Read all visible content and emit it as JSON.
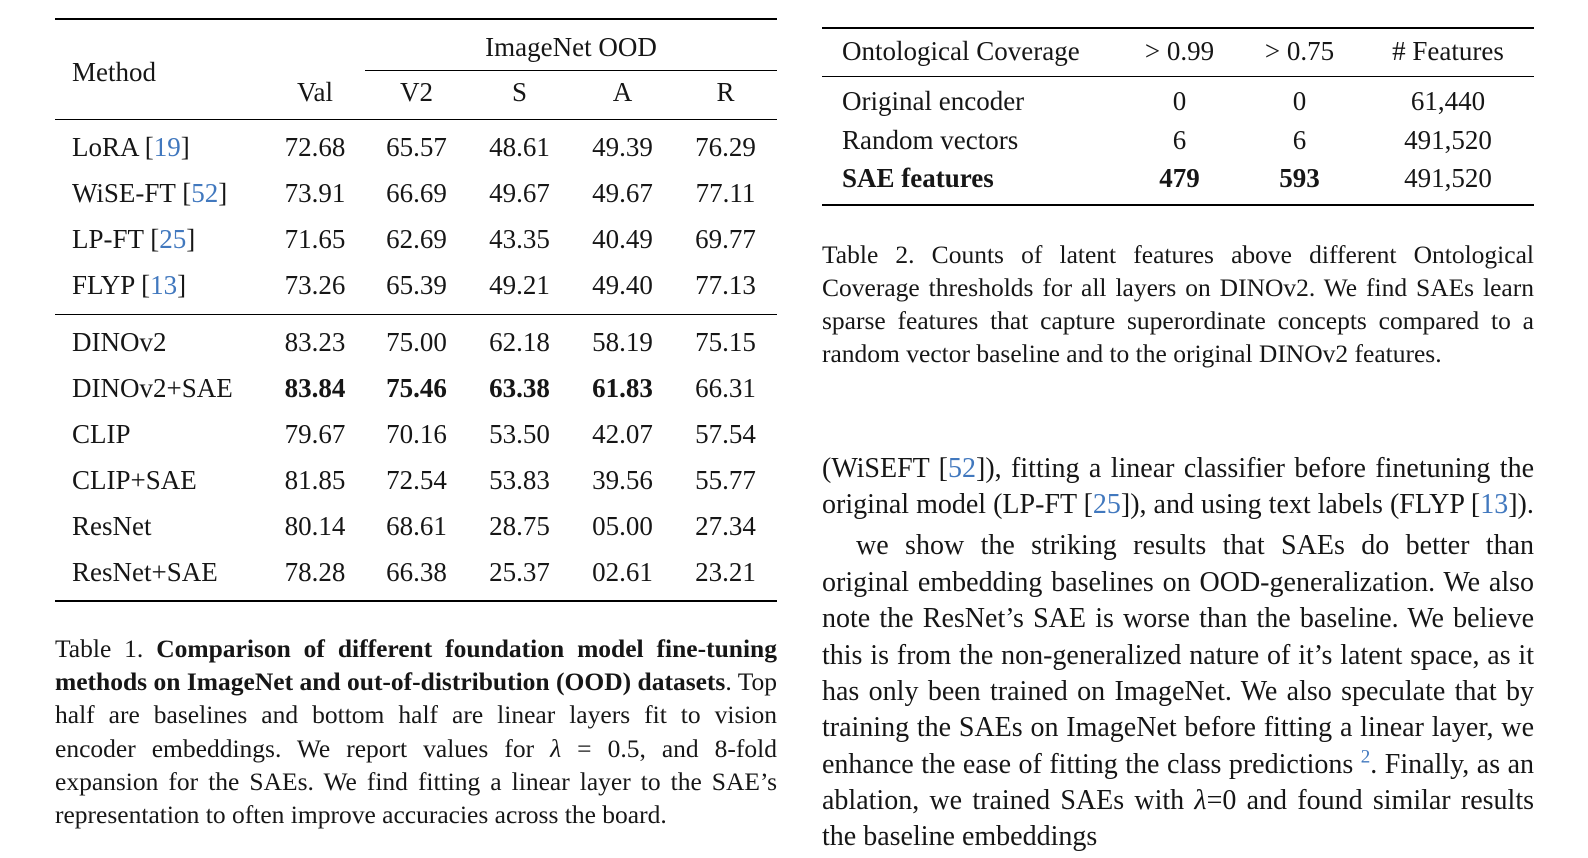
{
  "colors": {
    "cite_blue": "#4178be",
    "text": "#161616",
    "rule": "#000000"
  },
  "table1": {
    "header": {
      "method": "Method",
      "val": "Val",
      "ood_group": "ImageNet OOD",
      "ood_cols": [
        "V2",
        "S",
        "A",
        "R"
      ]
    },
    "baseline_rows": [
      {
        "method": "LoRA",
        "cite": "19",
        "values": [
          "72.68",
          "65.57",
          "48.61",
          "49.39",
          "76.29"
        ],
        "bold_idx": []
      },
      {
        "method": "WiSE-FT",
        "cite": "52",
        "values": [
          "73.91",
          "66.69",
          "49.67",
          "49.67",
          "77.11"
        ],
        "bold_idx": []
      },
      {
        "method": "LP-FT",
        "cite": "25",
        "values": [
          "71.65",
          "62.69",
          "43.35",
          "40.49",
          "69.77"
        ],
        "bold_idx": []
      },
      {
        "method": "FLYP",
        "cite": "13",
        "values": [
          "73.26",
          "65.39",
          "49.21",
          "49.40",
          "77.13"
        ],
        "bold_idx": []
      }
    ],
    "encoder_rows": [
      {
        "method": "DINOv2",
        "cite": "",
        "values": [
          "83.23",
          "75.00",
          "62.18",
          "58.19",
          "75.15"
        ],
        "bold_idx": []
      },
      {
        "method": "DINOv2+SAE",
        "cite": "",
        "values": [
          "83.84",
          "75.46",
          "63.38",
          "61.83",
          "66.31"
        ],
        "bold_idx": [
          0,
          1,
          2,
          3
        ]
      },
      {
        "method": "CLIP",
        "cite": "",
        "values": [
          "79.67",
          "70.16",
          "53.50",
          "42.07",
          "57.54"
        ],
        "bold_idx": []
      },
      {
        "method": "CLIP+SAE",
        "cite": "",
        "values": [
          "81.85",
          "72.54",
          "53.83",
          "39.56",
          "55.77"
        ],
        "bold_idx": []
      },
      {
        "method": "ResNet",
        "cite": "",
        "values": [
          "80.14",
          "68.61",
          "28.75",
          "05.00",
          "27.34"
        ],
        "bold_idx": []
      },
      {
        "method": "ResNet+SAE",
        "cite": "",
        "values": [
          "78.28",
          "66.38",
          "25.37",
          "02.61",
          "23.21"
        ],
        "bold_idx": []
      }
    ],
    "caption_segments": [
      {
        "t": "Table 1. "
      },
      {
        "t": "Comparison of different foundation model fine-tuning methods on ImageNet and out-of-distribution (OOD) datasets",
        "b": true
      },
      {
        "t": ". Top half are baselines and bottom half are linear layers fit to vision encoder embeddings. We report values for "
      },
      {
        "t": "λ",
        "i": true
      },
      {
        "t": " = 0.5, and 8-fold expansion for the SAEs. We find fitting a linear layer to the SAE’s representation to often improve accuracies across the board."
      }
    ]
  },
  "table2": {
    "header": {
      "label": "Ontological Coverage",
      "cols": [
        "> 0.99",
        "> 0.75",
        "# Features"
      ]
    },
    "rows": [
      {
        "label": "Original encoder",
        "bold_label": false,
        "values": [
          "0",
          "0",
          "61,440"
        ],
        "bold_idx": []
      },
      {
        "label": "Random vectors",
        "bold_label": false,
        "values": [
          "6",
          "6",
          "491,520"
        ],
        "bold_idx": []
      },
      {
        "label": "SAE features",
        "bold_label": true,
        "values": [
          "479",
          "593",
          "491,520"
        ],
        "bold_idx": [
          0,
          1
        ]
      }
    ],
    "caption_segments": [
      {
        "t": "Table 2. Counts of latent features above different Ontological Coverage thresholds for all layers on DINOv2. We find SAEs learn sparse features that capture superordinate concepts compared to a random vector baseline and to the original DINOv2 features."
      }
    ]
  },
  "body": {
    "paragraph1": [
      {
        "t": "(WiSEFT ["
      },
      {
        "t": "52",
        "c": true
      },
      {
        "t": "]), fitting a linear classifier before finetuning the original model (LP-FT ["
      },
      {
        "t": "25",
        "c": true
      },
      {
        "t": "]), and using text labels (FLYP ["
      },
      {
        "t": "13",
        "c": true
      },
      {
        "t": "])."
      }
    ],
    "paragraph2": [
      {
        "t": "we show the striking results that SAEs do better than original embedding baselines on OOD-generalization. We also note the ResNet’s SAE is worse than the baseline. We believe this is from the non-generalized nature of it’s latent space, as it has only been trained on ImageNet. We also speculate that by training the SAEs on ImageNet before fitting a linear layer, we enhance the ease of fitting the class predictions "
      },
      {
        "t": "2",
        "c": true,
        "sup": true
      },
      {
        "t": ". Finally, as an ablation, we trained SAEs with "
      },
      {
        "t": "λ",
        "i": true
      },
      {
        "t": "=0 and found similar results the baseline embeddings"
      }
    ]
  }
}
